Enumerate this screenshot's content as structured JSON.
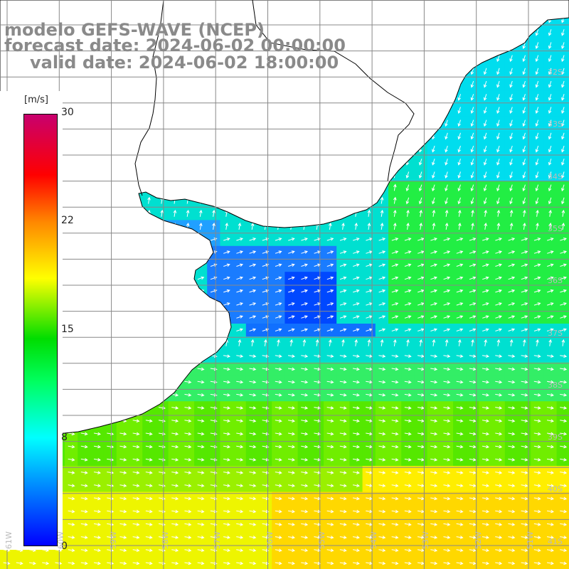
{
  "header": {
    "line1": "modelo GEFS-WAVE (NCEP)",
    "line2": "forecast date: 2024-06-02 00:00:00",
    "line3": "valid date: 2024-06-02 18:00:00"
  },
  "colorbar": {
    "unit": "[m/s]",
    "ticks": [
      "30",
      "22",
      "15",
      "8",
      "0"
    ],
    "colors": [
      "#0000ff",
      "#0096ff",
      "#00ffff",
      "#00ff60",
      "#00dd00",
      "#ffff00",
      "#ff8800",
      "#ff0000",
      "#c8006e"
    ]
  },
  "map": {
    "lon_labels": [
      "61W",
      "60W",
      "59W",
      "58W",
      "57W",
      "56W",
      "55W",
      "54W",
      "53W",
      "52W",
      "51W"
    ],
    "lat_labels": [
      "32S",
      "33S",
      "34S",
      "35S",
      "36S",
      "37S",
      "38S",
      "39S",
      "40S",
      "41S"
    ],
    "land_color": "#ffffff",
    "grid_color": "#888888",
    "arrow_color": "#ffffff"
  }
}
